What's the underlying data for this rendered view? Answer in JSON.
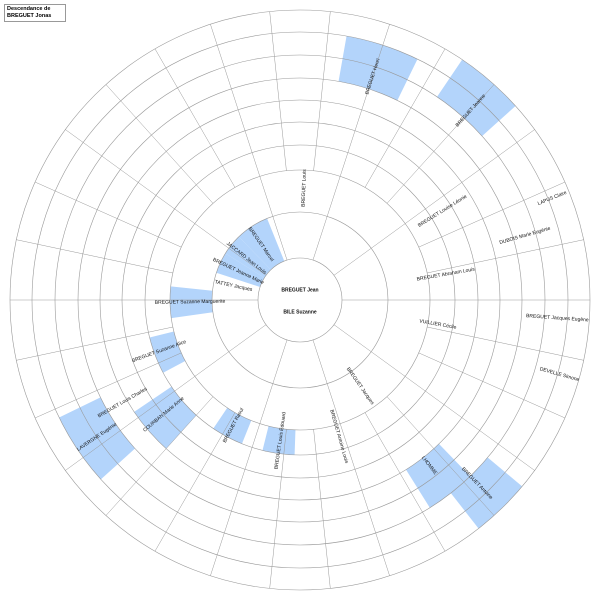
{
  "header": {
    "title": "Descendance de BREGUET Jonas"
  },
  "center": {
    "name": "BREGUET Jean",
    "spouse": "BILE Suzanne"
  },
  "people": [
    "BREGUET Suzanne Marguerite",
    "BREGUET Suzanne Alice",
    "TATTEY Jacques",
    "BREGUET Jeanne Marie",
    "JACCARD Jean Louis",
    "BREGUET Marcel",
    "BREGUET Louis",
    "BREGUET Louise Léonie",
    "BREGUET Abraham Louis",
    "VUILLIER Cécile",
    "BREGUET Jacques Eugène",
    "DEVELLE Simone",
    "DUBOIS Marie Eugénie",
    "LAPUS Claire",
    "BREGUET Henri",
    "BREGUET Jeanne",
    "BREGUET Antoine",
    "LHOMME",
    "BREGUET Antoine Louis",
    "BREGUET Louis Edouard",
    "BREGUET Raoul",
    "LAVERGNE Eugénie",
    "BREGUET Louis Charles",
    "COURBAN Marie Anne",
    "BREGUET Jacques"
  ]
}
